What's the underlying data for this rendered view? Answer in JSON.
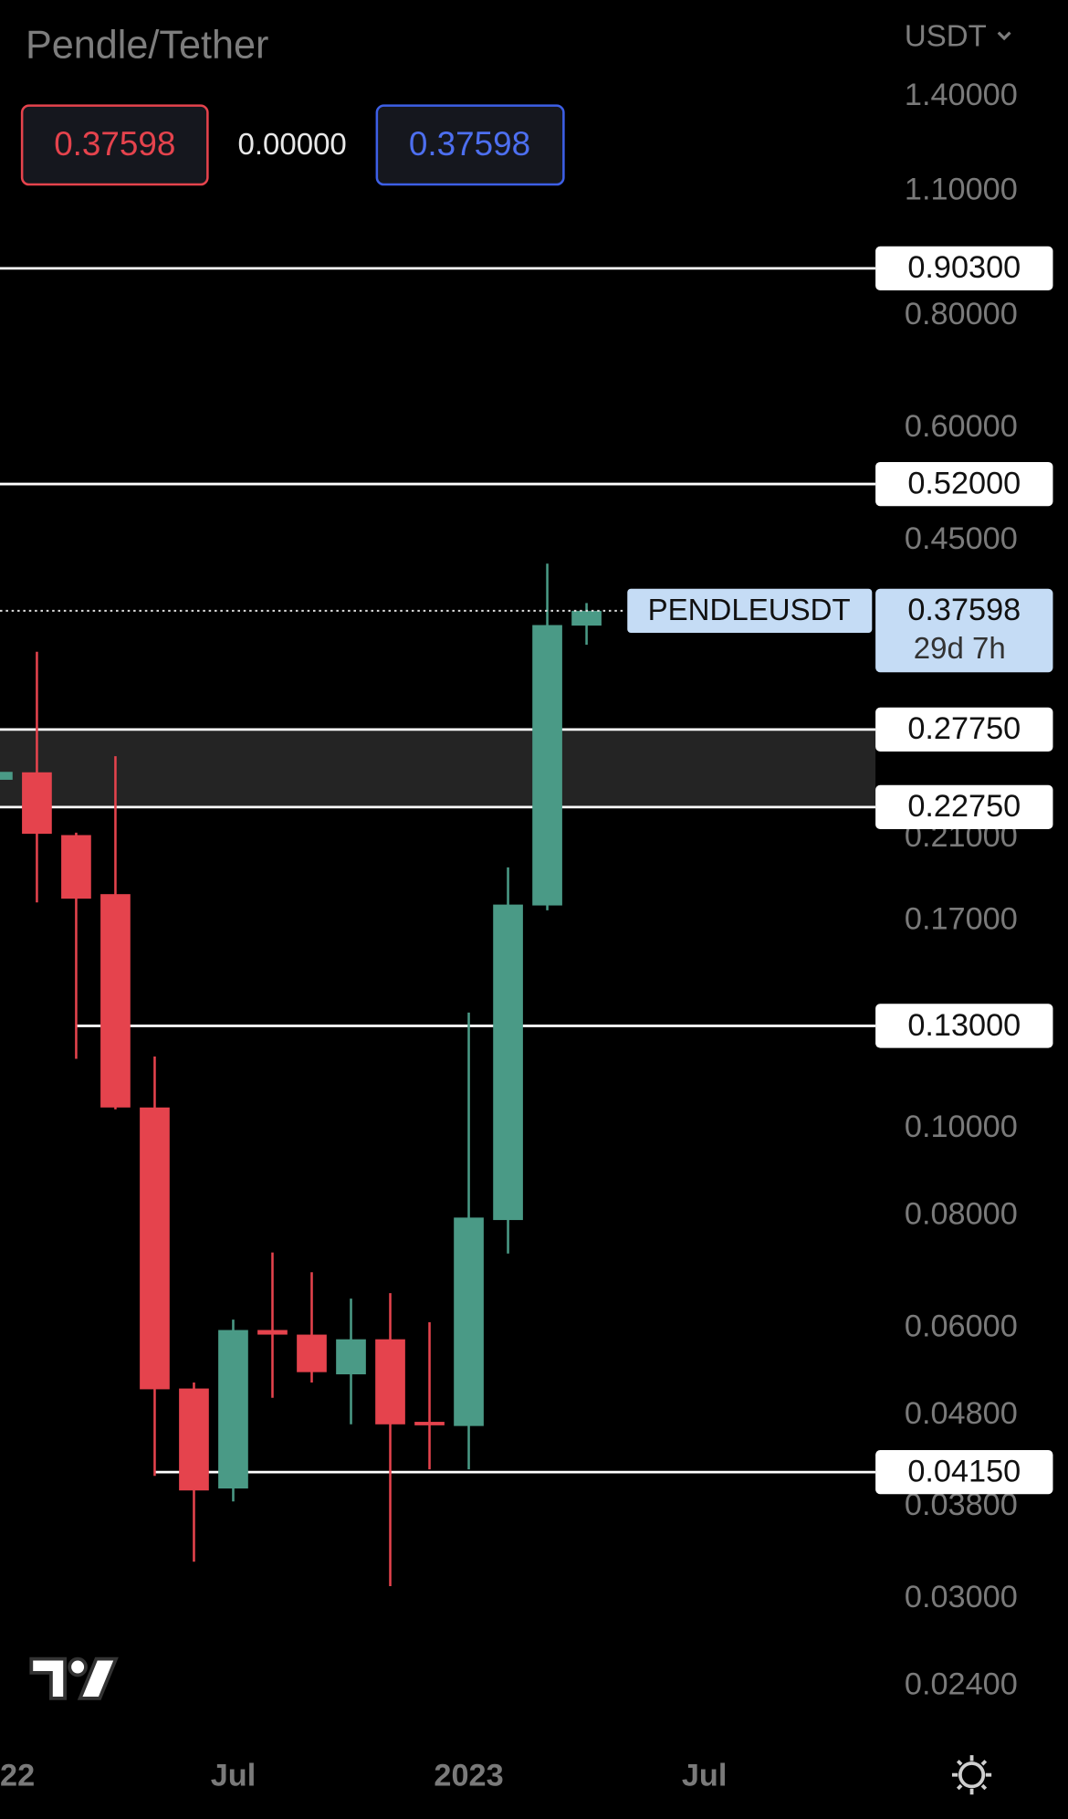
{
  "chart_data": {
    "type": "candlestick",
    "title": "Pendle/Tether",
    "currency": "USDT",
    "sell": 0.37598,
    "spread": {
      "value": 0,
      "label": "0.00000"
    },
    "buy": 0.37598,
    "log_scale": true,
    "up_color": "#4a9a86",
    "down_color": "#e5434d",
    "x": [
      0,
      1,
      2,
      3,
      4,
      5,
      6,
      7,
      8,
      9,
      10,
      11,
      12,
      13,
      14,
      15
    ],
    "open": [
      0.244,
      0.2487,
      0.2118,
      0.1821,
      0.1055,
      0.0514,
      0.0398,
      0.0597,
      0.059,
      0.0533,
      0.0583,
      0.0472,
      0.0467,
      0.0791,
      0.1769,
      0.362
    ],
    "high": [
      0.25,
      0.3386,
      0.2131,
      0.2592,
      0.1202,
      0.0522,
      0.0613,
      0.0728,
      0.0692,
      0.0647,
      0.0656,
      0.0609,
      0.1345,
      0.195,
      0.4242,
      0.3835
    ],
    "low": [
      0.243,
      0.1783,
      0.1195,
      0.105,
      0.0411,
      0.033,
      0.0385,
      0.0502,
      0.0522,
      0.0469,
      0.031,
      0.0418,
      0.0418,
      0.0726,
      0.1747,
      0.3447
    ],
    "close": [
      0.249,
      0.2125,
      0.18,
      0.1055,
      0.0513,
      0.0396,
      0.0597,
      0.059,
      0.0536,
      0.0583,
      0.0469,
      0.0468,
      0.0796,
      0.1773,
      0.3625,
      0.37598
    ],
    "xlim": [
      0.06,
      22.36
    ],
    "xticks": [
      {
        "value": 0,
        "label": "22"
      },
      {
        "value": 6,
        "label": "Jul"
      },
      {
        "value": 12,
        "label": "2023"
      },
      {
        "value": 18,
        "label": "Jul"
      }
    ],
    "ylim": [
      0.0206,
      1.794
    ],
    "yticks": [
      {
        "value": 1.4,
        "label": "1.40000"
      },
      {
        "value": 1.1,
        "label": "1.10000"
      },
      {
        "value": 0.8,
        "label": "0.80000"
      },
      {
        "value": 0.6,
        "label": "0.60000"
      },
      {
        "value": 0.45,
        "label": "0.45000"
      },
      {
        "value": 0.21,
        "label": "0.21000"
      },
      {
        "value": 0.17,
        "label": "0.17000"
      },
      {
        "value": 0.1,
        "label": "0.10000"
      },
      {
        "value": 0.08,
        "label": "0.08000"
      },
      {
        "value": 0.06,
        "label": "0.06000"
      },
      {
        "value": 0.048,
        "label": "0.04800"
      },
      {
        "value": 0.038,
        "label": "0.03800"
      },
      {
        "value": 0.03,
        "label": "0.03000"
      },
      {
        "value": 0.024,
        "label": "0.02400"
      }
    ],
    "levels": [
      {
        "value": 0.903,
        "label": "0.90300",
        "start": 0
      },
      {
        "value": 0.52,
        "label": "0.52000",
        "start": 0
      },
      {
        "value": 0.2775,
        "label": "0.27750",
        "start": 0
      },
      {
        "value": 0.2275,
        "label": "0.22750",
        "start": 0
      },
      {
        "value": 0.13,
        "label": "0.13000",
        "start": 2
      },
      {
        "value": 0.0415,
        "label": "0.04150",
        "start": 4
      }
    ],
    "zone_levels": [
      2,
      3
    ],
    "last": {
      "symbol": "PENDLEUSDT",
      "value": 0.37598,
      "countdown": "29d 7h"
    }
  }
}
